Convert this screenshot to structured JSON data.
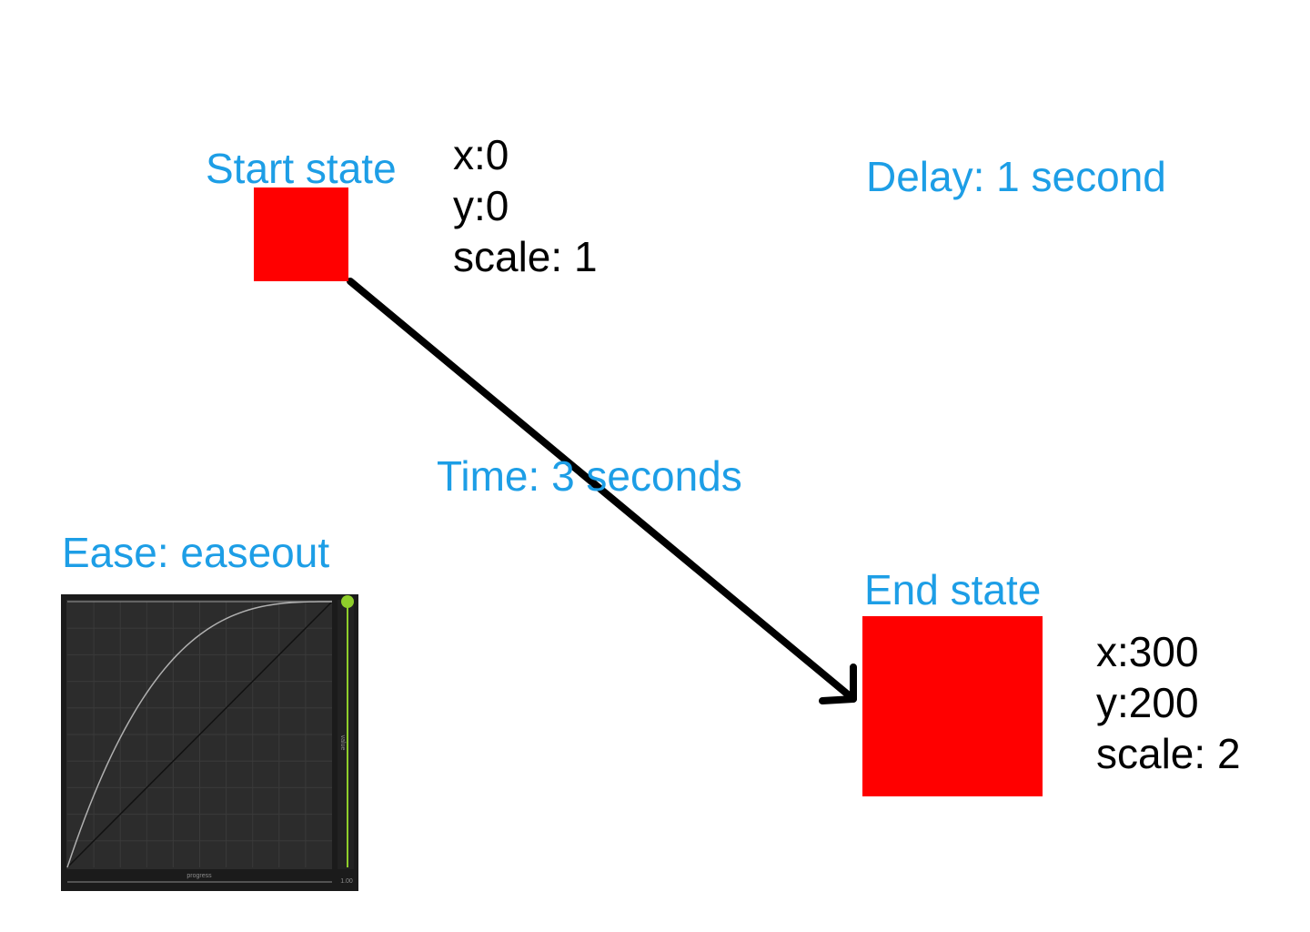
{
  "start": {
    "label": "Start state",
    "x_line": "x:0",
    "y_line": "y:0",
    "scale_line": "scale: 1"
  },
  "end": {
    "label": "End state",
    "x_line": "x:300",
    "y_line": "y:200",
    "scale_line": "scale: 2"
  },
  "delay_label": "Delay: 1 second",
  "time_label": "Time: 3 seconds",
  "ease": {
    "label": "Ease: easeout",
    "x_axis_label": "progress",
    "y_axis_label": "value",
    "end_tick_label": "1.00",
    "current_value": 1.0
  },
  "colors": {
    "box": "#ff0000",
    "label_blue": "#1d9ee6",
    "graph_bg": "#2c2c2c",
    "value_green": "#8fce2b"
  }
}
